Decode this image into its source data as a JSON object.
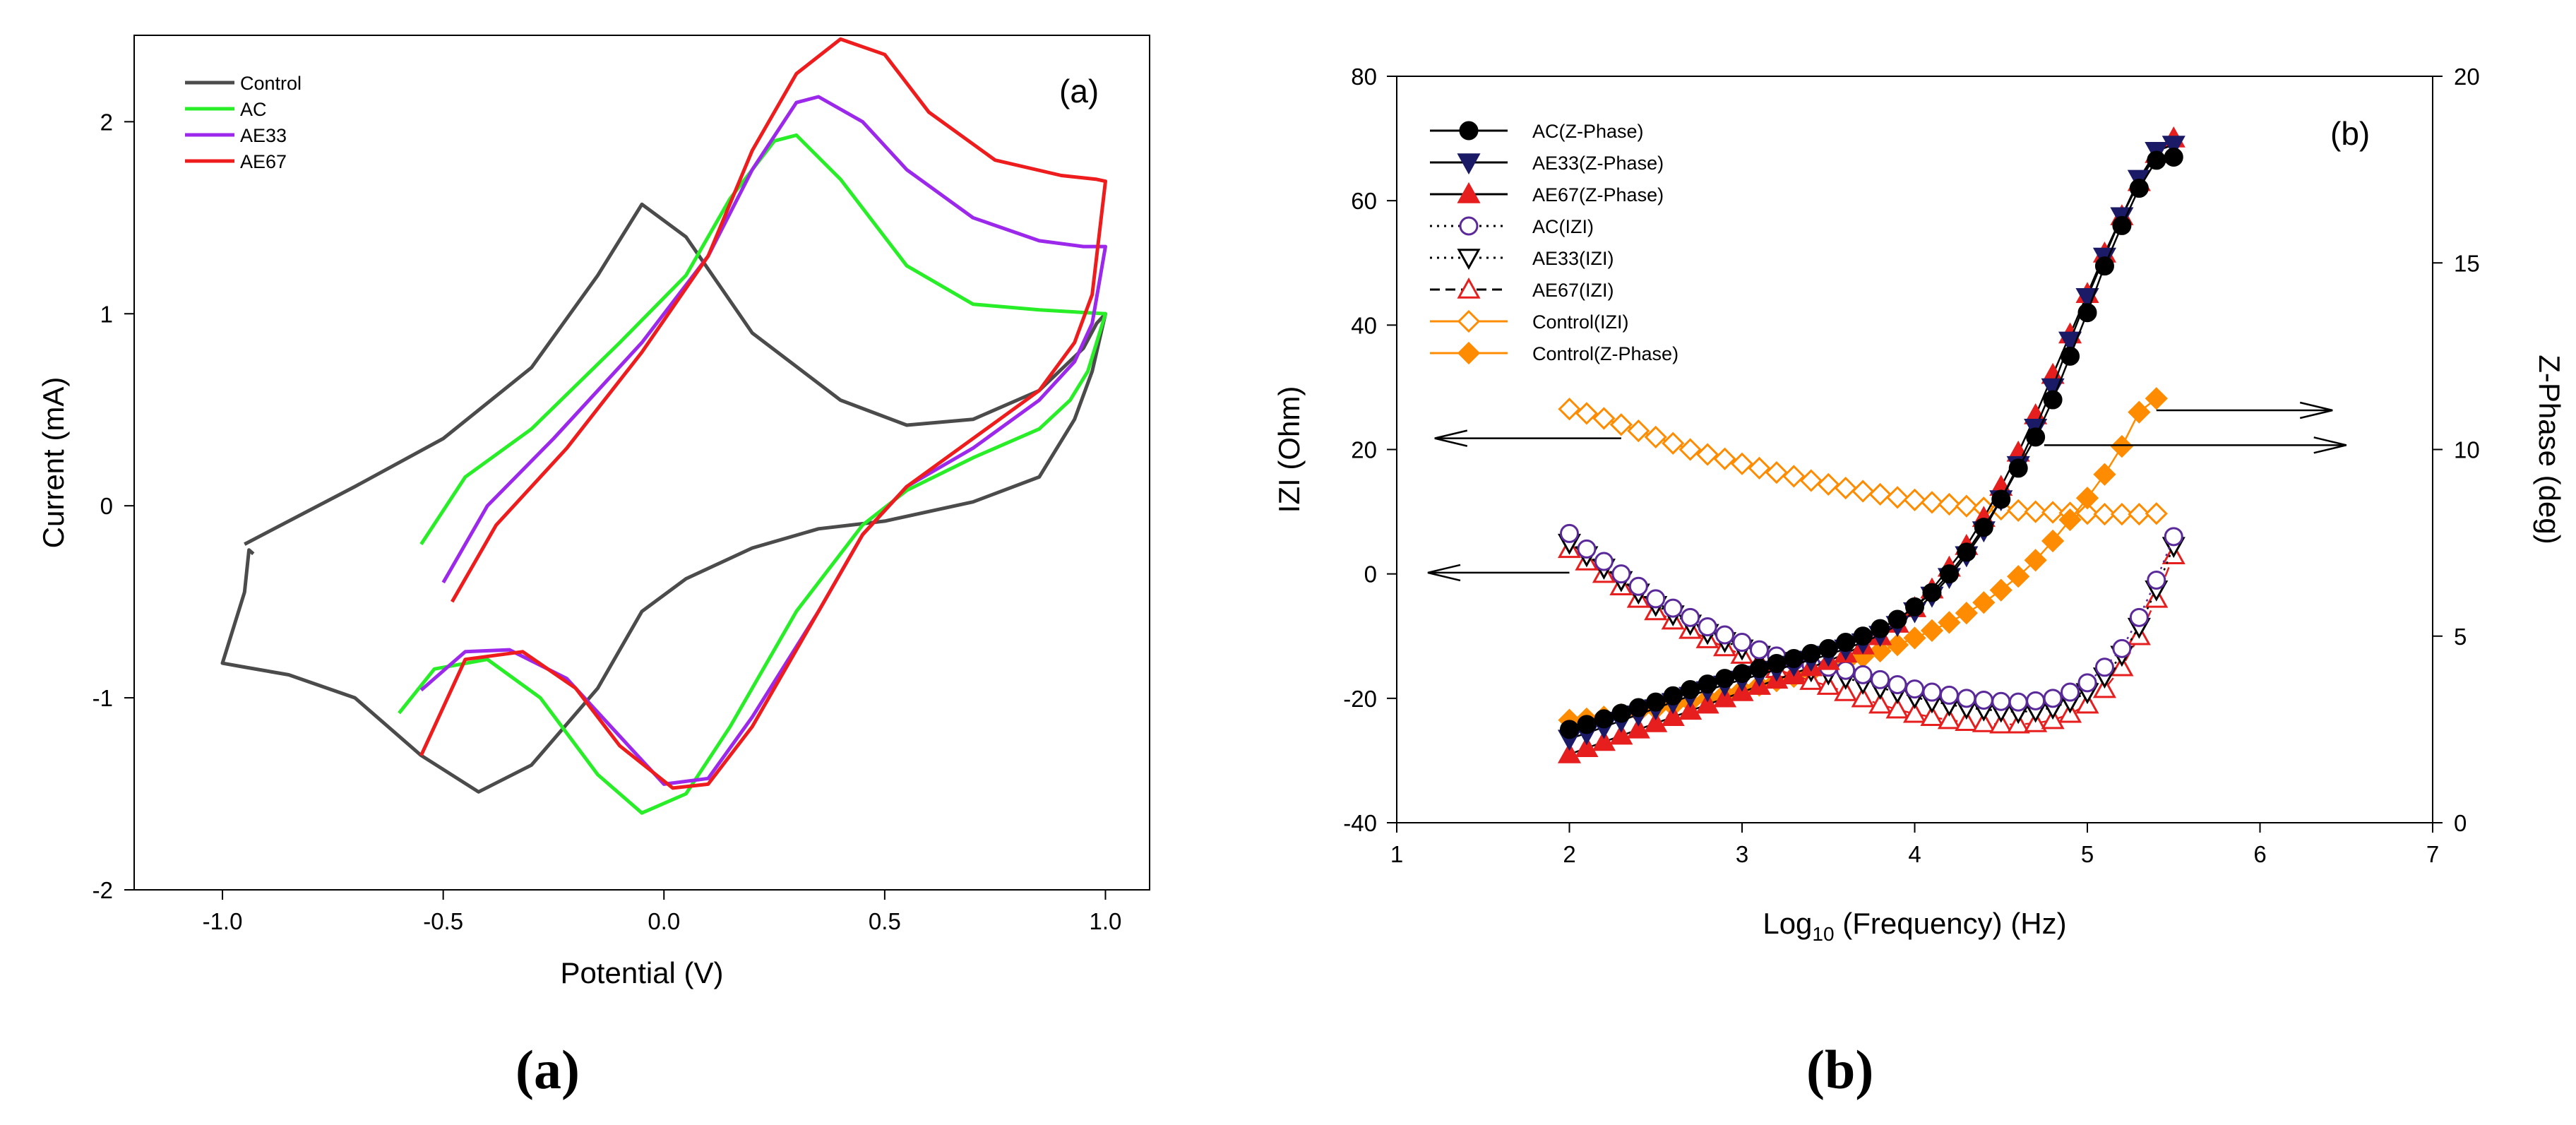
{
  "colors": {
    "control": "#4b4b4b",
    "ac": "#28ee28",
    "ae33": "#9b28ea",
    "ae67": "#ee1c1c",
    "orange": "#ff8c00",
    "black": "#000000",
    "navy": "#1a1a66",
    "purple": "#5a2a9a",
    "red": "#e61e1e"
  },
  "captions": {
    "a": "a",
    "b": "b"
  },
  "chart_data": [
    {
      "id": "panel-a",
      "type": "line",
      "title": "",
      "panel_tag": "(a)",
      "xlabel": "Potential (V)",
      "ylabel": "Current (mA)",
      "xlim": [
        -1.2,
        1.1
      ],
      "ylim": [
        -2,
        2.45
      ],
      "xticks": [
        -1.0,
        -0.5,
        0.0,
        0.5,
        1.0
      ],
      "xtick_labels": [
        "-1.0",
        "-0.5",
        "0.0",
        "0.5",
        "1.0"
      ],
      "yticks": [
        -2,
        -1,
        0,
        1,
        2
      ],
      "ytick_labels": [
        "-2",
        "-1",
        "0",
        "1",
        "2"
      ],
      "legend": [
        "Control",
        "AC",
        "AE33",
        "AE67"
      ],
      "series": [
        {
          "name": "Control",
          "color_key": "control",
          "x": [
            -0.95,
            -0.7,
            -0.5,
            -0.3,
            -0.15,
            -0.05,
            0.05,
            0.2,
            0.4,
            0.55,
            0.7,
            0.85,
            0.95,
            0.98,
            1.0,
            0.97,
            0.93,
            0.85,
            0.7,
            0.5,
            0.35,
            0.2,
            0.05,
            -0.05,
            -0.15,
            -0.3,
            -0.42,
            -0.55,
            -0.7,
            -0.85,
            -0.95,
            -1.0,
            -0.95,
            -0.94,
            -0.93
          ],
          "y": [
            -0.2,
            0.1,
            0.35,
            0.72,
            1.2,
            1.57,
            1.4,
            0.9,
            0.55,
            0.42,
            0.45,
            0.6,
            0.82,
            0.95,
            1.0,
            0.7,
            0.45,
            0.15,
            0.02,
            -0.08,
            -0.12,
            -0.22,
            -0.38,
            -0.55,
            -0.95,
            -1.35,
            -1.49,
            -1.3,
            -1.0,
            -0.88,
            -0.84,
            -0.82,
            -0.45,
            -0.23,
            -0.25
          ]
        },
        {
          "name": "AC",
          "color_key": "ac",
          "x": [
            -0.55,
            -0.45,
            -0.3,
            -0.1,
            0.05,
            0.15,
            0.25,
            0.3,
            0.4,
            0.55,
            0.7,
            0.85,
            1.0,
            0.96,
            0.92,
            0.85,
            0.7,
            0.55,
            0.45,
            0.3,
            0.15,
            0.05,
            -0.05,
            -0.15,
            -0.28,
            -0.4,
            -0.52,
            -0.6
          ],
          "y": [
            -0.2,
            0.15,
            0.4,
            0.85,
            1.2,
            1.6,
            1.9,
            1.93,
            1.7,
            1.25,
            1.05,
            1.02,
            1.0,
            0.7,
            0.55,
            0.4,
            0.25,
            0.08,
            -0.1,
            -0.55,
            -1.15,
            -1.5,
            -1.6,
            -1.4,
            -1.0,
            -0.8,
            -0.85,
            -1.08
          ]
        },
        {
          "name": "AE33",
          "color_key": "ae33",
          "x": [
            -0.5,
            -0.4,
            -0.25,
            -0.05,
            0.1,
            0.2,
            0.3,
            0.35,
            0.45,
            0.55,
            0.7,
            0.85,
            0.95,
            1.0,
            0.97,
            0.93,
            0.85,
            0.7,
            0.55,
            0.45,
            0.35,
            0.2,
            0.1,
            0.0,
            -0.1,
            -0.22,
            -0.35,
            -0.45,
            -0.55
          ],
          "y": [
            -0.4,
            0.0,
            0.35,
            0.85,
            1.3,
            1.75,
            2.1,
            2.13,
            2.0,
            1.75,
            1.5,
            1.38,
            1.35,
            1.35,
            0.95,
            0.75,
            0.55,
            0.3,
            0.1,
            -0.15,
            -0.55,
            -1.1,
            -1.42,
            -1.45,
            -1.2,
            -0.9,
            -0.75,
            -0.76,
            -0.96
          ]
        },
        {
          "name": "AE67",
          "color_key": "ae67",
          "x": [
            -0.48,
            -0.38,
            -0.22,
            -0.05,
            0.1,
            0.2,
            0.3,
            0.4,
            0.5,
            0.6,
            0.75,
            0.9,
            0.98,
            1.0,
            0.97,
            0.93,
            0.85,
            0.7,
            0.55,
            0.45,
            0.35,
            0.2,
            0.1,
            0.02,
            -0.1,
            -0.2,
            -0.32,
            -0.45,
            -0.55
          ],
          "y": [
            -0.5,
            -0.1,
            0.3,
            0.8,
            1.3,
            1.85,
            2.25,
            2.43,
            2.35,
            2.05,
            1.8,
            1.72,
            1.7,
            1.69,
            1.1,
            0.85,
            0.6,
            0.35,
            0.1,
            -0.15,
            -0.55,
            -1.15,
            -1.45,
            -1.47,
            -1.25,
            -0.95,
            -0.76,
            -0.8,
            -1.3
          ]
        }
      ]
    },
    {
      "id": "panel-b",
      "type": "line",
      "title": "",
      "panel_tag": "(b)",
      "xlabel": "Log10 (Frequency) (Hz)",
      "xlabel_text": "Log",
      "xlabel_sub": "10",
      "xlabel_rest": " (Frequency) (Hz)",
      "ylabel": "IZI (Ohm)",
      "y2label": "Z-Phase (deg)",
      "xlim": [
        1,
        7
      ],
      "ylim": [
        -40,
        80
      ],
      "y2lim": [
        0,
        20
      ],
      "xticks": [
        1,
        2,
        3,
        4,
        5,
        6,
        7
      ],
      "xtick_labels": [
        "1",
        "2",
        "3",
        "4",
        "5",
        "6",
        "7"
      ],
      "yticks": [
        -40,
        -20,
        0,
        20,
        40,
        60,
        80
      ],
      "ytick_labels": [
        "-40",
        "-20",
        "0",
        "20",
        "40",
        "60",
        "80"
      ],
      "y2ticks": [
        0,
        5,
        10,
        15,
        20
      ],
      "y2tick_labels": [
        "0",
        "5",
        "10",
        "15",
        "20"
      ],
      "legend": [
        "AC(Z-Phase)",
        "AE33(Z-Phase)",
        "AE67(Z-Phase)",
        "AC(IZI)",
        "AE33(IZI)",
        "AE67(IZI)",
        "Control(IZI)",
        "Control(Z-Phase)"
      ],
      "x": [
        2.0,
        2.1,
        2.2,
        2.3,
        2.4,
        2.5,
        2.6,
        2.7,
        2.8,
        2.9,
        3.0,
        3.1,
        3.2,
        3.3,
        3.4,
        3.5,
        3.6,
        3.7,
        3.8,
        3.9,
        4.0,
        4.1,
        4.2,
        4.3,
        4.4,
        4.5,
        4.6,
        4.7,
        4.8,
        4.9,
        5.0,
        5.1,
        5.2,
        5.3,
        5.4,
        5.5
      ],
      "series": [
        {
          "name": "AC(Z-Phase)",
          "marker": "circle-filled",
          "line": "solid",
          "color_key": "black",
          "x": [
            2.0,
            2.1,
            2.2,
            2.3,
            2.4,
            2.5,
            2.6,
            2.7,
            2.8,
            2.9,
            3.0,
            3.1,
            3.2,
            3.3,
            3.4,
            3.5,
            3.6,
            3.7,
            3.8,
            3.9,
            4.0,
            4.1,
            4.2,
            4.3,
            4.4,
            4.5,
            4.6,
            4.7,
            4.8,
            4.9,
            5.0,
            5.1,
            5.2,
            5.3,
            5.4,
            5.5
          ],
          "y": [
            -25,
            -24.2,
            -23.3,
            -22.4,
            -21.5,
            -20.6,
            -19.6,
            -18.6,
            -17.7,
            -16.8,
            -16,
            -15.2,
            -14.4,
            -13.6,
            -12.8,
            -12,
            -11,
            -10,
            -8.8,
            -7.3,
            -5.3,
            -3,
            0,
            3.5,
            7.5,
            12,
            17,
            22,
            28,
            35,
            42,
            49.5,
            56,
            62,
            66.5,
            67
          ]
        },
        {
          "name": "AE33(Z-Phase)",
          "marker": "triangle-down-filled",
          "line": "solid",
          "color_key": "navy",
          "x": [
            2.0,
            2.1,
            2.2,
            2.3,
            2.4,
            2.5,
            2.6,
            2.7,
            2.8,
            2.9,
            3.0,
            3.1,
            3.2,
            3.3,
            3.4,
            3.5,
            3.6,
            3.7,
            3.8,
            3.9,
            4.0,
            4.1,
            4.2,
            4.3,
            4.4,
            4.5,
            4.6,
            4.7,
            4.8,
            4.9,
            5.0,
            5.1,
            5.2,
            5.3,
            5.4,
            5.5
          ],
          "y": [
            -26.5,
            -25.6,
            -24.6,
            -23.6,
            -22.6,
            -21.6,
            -20.6,
            -19.6,
            -18.7,
            -17.8,
            -17,
            -16.2,
            -15.4,
            -14.6,
            -13.8,
            -13,
            -12,
            -11,
            -9.8,
            -8.2,
            -6,
            -3.5,
            -0.5,
            3,
            7,
            12,
            17.5,
            23.5,
            30,
            37.5,
            44.5,
            51,
            57.5,
            63.5,
            68,
            69
          ]
        },
        {
          "name": "AE67(Z-Phase)",
          "marker": "triangle-up-filled",
          "line": "solid",
          "color_key": "red",
          "x": [
            2.0,
            2.1,
            2.2,
            2.3,
            2.4,
            2.5,
            2.6,
            2.7,
            2.8,
            2.9,
            3.0,
            3.1,
            3.2,
            3.3,
            3.4,
            3.5,
            3.6,
            3.7,
            3.8,
            3.9,
            4.0,
            4.1,
            4.2,
            4.3,
            4.4,
            4.5,
            4.6,
            4.7,
            4.8,
            4.9,
            5.0,
            5.1,
            5.2,
            5.3,
            5.4,
            5.5
          ],
          "y": [
            -29,
            -28,
            -27,
            -26,
            -25,
            -24,
            -23,
            -22,
            -21,
            -20,
            -19,
            -18,
            -17,
            -16,
            -15,
            -14,
            -12.8,
            -11.5,
            -10,
            -8,
            -5.5,
            -2.5,
            1,
            4.5,
            9,
            14,
            19.5,
            25.5,
            32,
            38.5,
            45,
            51.5,
            57.5,
            63,
            67.5,
            70
          ]
        },
        {
          "name": "AC(IZI)",
          "marker": "circle-open",
          "line": "dotted",
          "color_key": "purple",
          "x": [
            2.0,
            2.1,
            2.2,
            2.3,
            2.4,
            2.5,
            2.6,
            2.7,
            2.8,
            2.9,
            3.0,
            3.1,
            3.2,
            3.3,
            3.4,
            3.5,
            3.6,
            3.7,
            3.8,
            3.9,
            4.0,
            4.1,
            4.2,
            4.3,
            4.4,
            4.5,
            4.6,
            4.7,
            4.8,
            4.9,
            5.0,
            5.1,
            5.2,
            5.3,
            5.4,
            5.5
          ],
          "y": [
            6.5,
            4,
            2,
            0,
            -2,
            -4,
            -5.5,
            -7,
            -8.5,
            -9.8,
            -11,
            -12.2,
            -13.2,
            -14,
            -14.6,
            -15,
            -15.5,
            -16.2,
            -17,
            -17.8,
            -18.5,
            -19,
            -19.5,
            -20,
            -20.3,
            -20.5,
            -20.6,
            -20.4,
            -20,
            -19,
            -17.5,
            -15,
            -12,
            -7,
            -1,
            6
          ]
        },
        {
          "name": "AE33(IZI)",
          "marker": "triangle-down-open",
          "line": "dotted",
          "color_key": "black",
          "x": [
            2.0,
            2.1,
            2.2,
            2.3,
            2.4,
            2.5,
            2.6,
            2.7,
            2.8,
            2.9,
            3.0,
            3.1,
            3.2,
            3.3,
            3.4,
            3.5,
            3.6,
            3.7,
            3.8,
            3.9,
            4.0,
            4.1,
            4.2,
            4.3,
            4.4,
            4.5,
            4.6,
            4.7,
            4.8,
            4.9,
            5.0,
            5.1,
            5.2,
            5.3,
            5.4,
            5.5
          ],
          "y": [
            5,
            3,
            1,
            -1,
            -3,
            -5,
            -6.5,
            -8,
            -9.5,
            -10.8,
            -12,
            -13,
            -14,
            -14.8,
            -15.5,
            -16,
            -16.7,
            -17.5,
            -18.3,
            -19,
            -19.8,
            -20.5,
            -21,
            -21.5,
            -21.8,
            -22,
            -22.2,
            -22,
            -21.5,
            -20.5,
            -19,
            -16.5,
            -13,
            -8.5,
            -2.5,
            4.5
          ]
        },
        {
          "name": "AE67(IZI)",
          "marker": "triangle-up-open",
          "line": "dashed",
          "color_key": "red",
          "x": [
            2.0,
            2.1,
            2.2,
            2.3,
            2.4,
            2.5,
            2.6,
            2.7,
            2.8,
            2.9,
            3.0,
            3.1,
            3.2,
            3.3,
            3.4,
            3.5,
            3.6,
            3.7,
            3.8,
            3.9,
            4.0,
            4.1,
            4.2,
            4.3,
            4.4,
            4.5,
            4.6,
            4.7,
            4.8,
            4.9,
            5.0,
            5.1,
            5.2,
            5.3,
            5.4,
            5.5
          ],
          "y": [
            4,
            2,
            0,
            -2,
            -4,
            -6,
            -7.5,
            -9,
            -10.5,
            -11.8,
            -13,
            -14.2,
            -15.3,
            -16.3,
            -17.2,
            -18,
            -19,
            -20,
            -21,
            -21.8,
            -22.5,
            -23,
            -23.5,
            -23.8,
            -24,
            -24.2,
            -24.2,
            -24,
            -23.5,
            -22.5,
            -21,
            -18.5,
            -15,
            -10,
            -4,
            3
          ]
        },
        {
          "name": "Control(IZI)",
          "marker": "diamond-open",
          "line": "solid",
          "color_key": "orange",
          "x": [
            2.0,
            2.1,
            2.2,
            2.3,
            2.4,
            2.5,
            2.6,
            2.7,
            2.8,
            2.9,
            3.0,
            3.1,
            3.2,
            3.3,
            3.4,
            3.5,
            3.6,
            3.7,
            3.8,
            3.9,
            4.0,
            4.1,
            4.2,
            4.3,
            4.4,
            4.5,
            4.6,
            4.7,
            4.8,
            4.9,
            5.0,
            5.1,
            5.2,
            5.3,
            5.4
          ],
          "y": [
            26.5,
            25.8,
            25,
            24,
            23,
            22,
            21,
            20,
            19.2,
            18.5,
            17.7,
            17,
            16.3,
            15.7,
            15,
            14.4,
            13.8,
            13.3,
            12.8,
            12.3,
            11.9,
            11.5,
            11.2,
            10.9,
            10.6,
            10.4,
            10.2,
            10,
            9.9,
            9.8,
            9.7,
            9.6,
            9.6,
            9.6,
            9.7
          ]
        },
        {
          "name": "Control(Z-Phase)",
          "marker": "diamond-filled",
          "line": "solid",
          "color_key": "orange",
          "x": [
            2.0,
            2.1,
            2.2,
            2.3,
            2.4,
            2.5,
            2.6,
            2.7,
            2.8,
            2.9,
            3.0,
            3.1,
            3.2,
            3.3,
            3.4,
            3.5,
            3.6,
            3.7,
            3.8,
            3.9,
            4.0,
            4.1,
            4.2,
            4.3,
            4.4,
            4.5,
            4.6,
            4.7,
            4.8,
            4.9,
            5.0,
            5.1,
            5.2,
            5.3,
            5.4
          ],
          "y": [
            -23.5,
            -23.3,
            -23,
            -22.6,
            -22.2,
            -21.7,
            -21.2,
            -20.6,
            -20,
            -19.3,
            -18.6,
            -17.9,
            -17.2,
            -16.5,
            -15.8,
            -15,
            -14.2,
            -13.3,
            -12.4,
            -11.4,
            -10.3,
            -9.1,
            -7.8,
            -6.3,
            -4.6,
            -2.6,
            -0.4,
            2.2,
            5.3,
            8.7,
            12.2,
            16,
            20.5,
            26,
            28.2
          ]
        }
      ]
    }
  ]
}
